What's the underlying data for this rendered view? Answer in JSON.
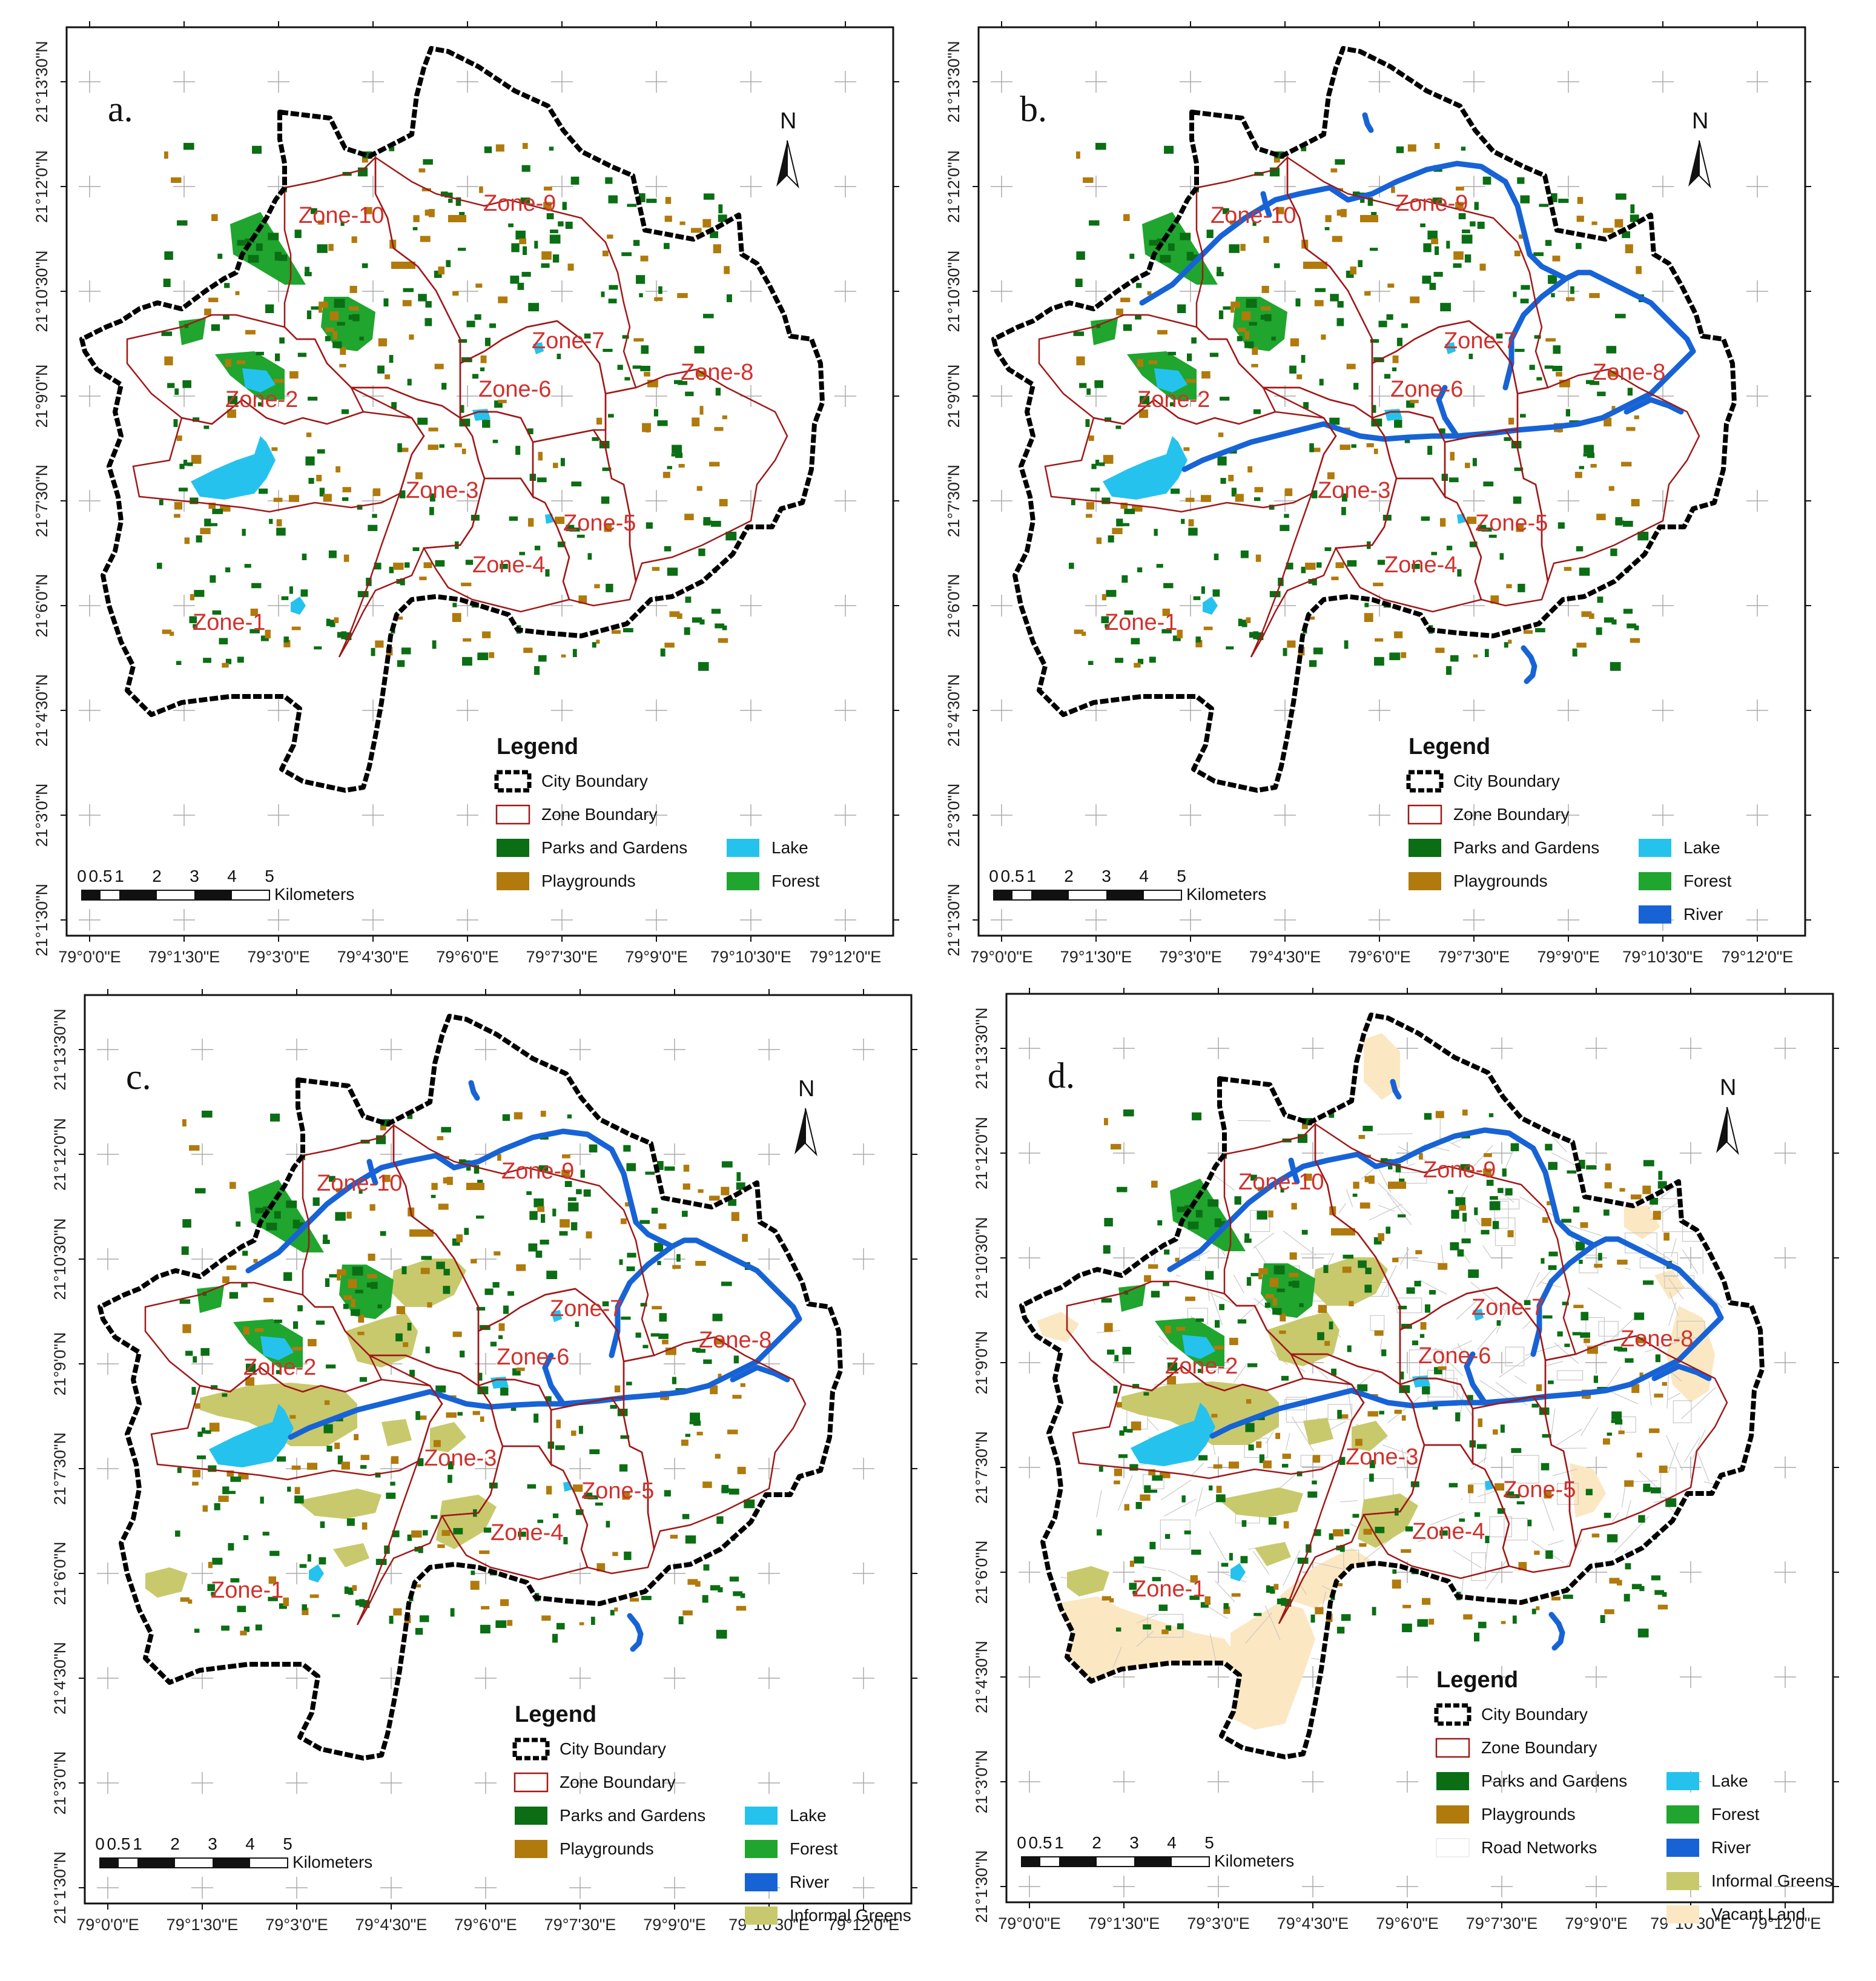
{
  "colors": {
    "city_boundary": "#000000",
    "zone_boundary": "#a01818",
    "parks": "#0b6e14",
    "playgrounds": "#b07a0c",
    "lake": "#25c2ee",
    "forest": "#20a52e",
    "river": "#1763d6",
    "informal_greens": "#c8c96c",
    "vacant_land": "#fbe7c2",
    "road_networks": "#c8c8c8",
    "zone_label": "#d0312d"
  },
  "lon_ticks": [
    "79°0'0\"E",
    "79°1'30\"E",
    "79°3'0\"E",
    "79°4'30\"E",
    "79°6'0\"E",
    "79°7'30\"E",
    "79°9'0\"E",
    "79°10'30\"E",
    "79°12'0\"E"
  ],
  "lat_ticks": [
    "21°13'30\"N",
    "21°12'0\"N",
    "21°10'30\"N",
    "21°9'0\"N",
    "21°7'30\"N",
    "21°6'0\"N",
    "21°4'30\"N",
    "21°3'0\"N",
    "21°1'30\"N"
  ],
  "zones": [
    "Zone-1",
    "Zone-2",
    "Zone-3",
    "Zone-4",
    "Zone-5",
    "Zone-6",
    "Zone-7",
    "Zone-8",
    "Zone-9",
    "Zone-10"
  ],
  "north_label": "N",
  "scale_bar": {
    "labels": [
      "0",
      "0.5",
      "1",
      "2",
      "3",
      "4",
      "5"
    ],
    "unit": "Kilometers"
  },
  "legend_title": "Legend",
  "panels": [
    {
      "label": "a.",
      "legend": [
        "City Boundary",
        "Zone Boundary",
        "Parks and Gardens",
        "Playgrounds",
        "Lake",
        "Forest"
      ]
    },
    {
      "label": "b.",
      "legend": [
        "City Boundary",
        "Zone Boundary",
        "Parks and Gardens",
        "Playgrounds",
        "Lake",
        "Forest",
        "River"
      ]
    },
    {
      "label": "c.",
      "legend": [
        "City Boundary",
        "Zone Boundary",
        "Parks and Gardens",
        "Playgrounds",
        "Lake",
        "Forest",
        "River",
        "Informal Greens"
      ]
    },
    {
      "label": "d.",
      "legend": [
        "City Boundary",
        "Zone Boundary",
        "Parks and Gardens",
        "Playgrounds",
        "Road Networks",
        "Lake",
        "Forest",
        "River",
        "Informal Greens",
        "Vacant Land"
      ]
    }
  ]
}
